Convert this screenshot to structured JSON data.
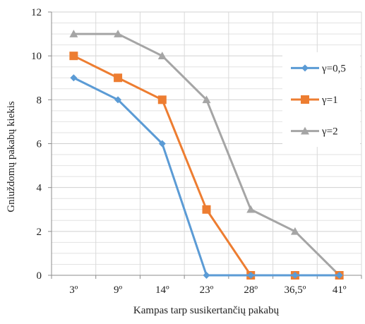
{
  "chart_data": {
    "type": "line",
    "title": "",
    "xlabel": "Kampas tarp susikertančių pakabų",
    "ylabel": "Gniuždomų pakabų kiekis",
    "categories": [
      "3º",
      "9º",
      "14º",
      "23º",
      "28º",
      "36,5º",
      "41º"
    ],
    "ylim": [
      0,
      12
    ],
    "yticks": [
      0,
      2,
      4,
      6,
      8,
      10,
      12
    ],
    "grid": true,
    "legend_position": "right",
    "series": [
      {
        "name": "γ=0,5",
        "color": "#5B9BD5",
        "marker": "diamond",
        "values": [
          9,
          8,
          6,
          0,
          0,
          0,
          0
        ]
      },
      {
        "name": "γ=1",
        "color": "#ED7D31",
        "marker": "square",
        "values": [
          10,
          9,
          8,
          3,
          0,
          0,
          0
        ]
      },
      {
        "name": "γ=2",
        "color": "#A5A5A5",
        "marker": "triangle",
        "values": [
          11,
          11,
          10,
          8,
          3,
          2,
          0
        ]
      }
    ]
  }
}
